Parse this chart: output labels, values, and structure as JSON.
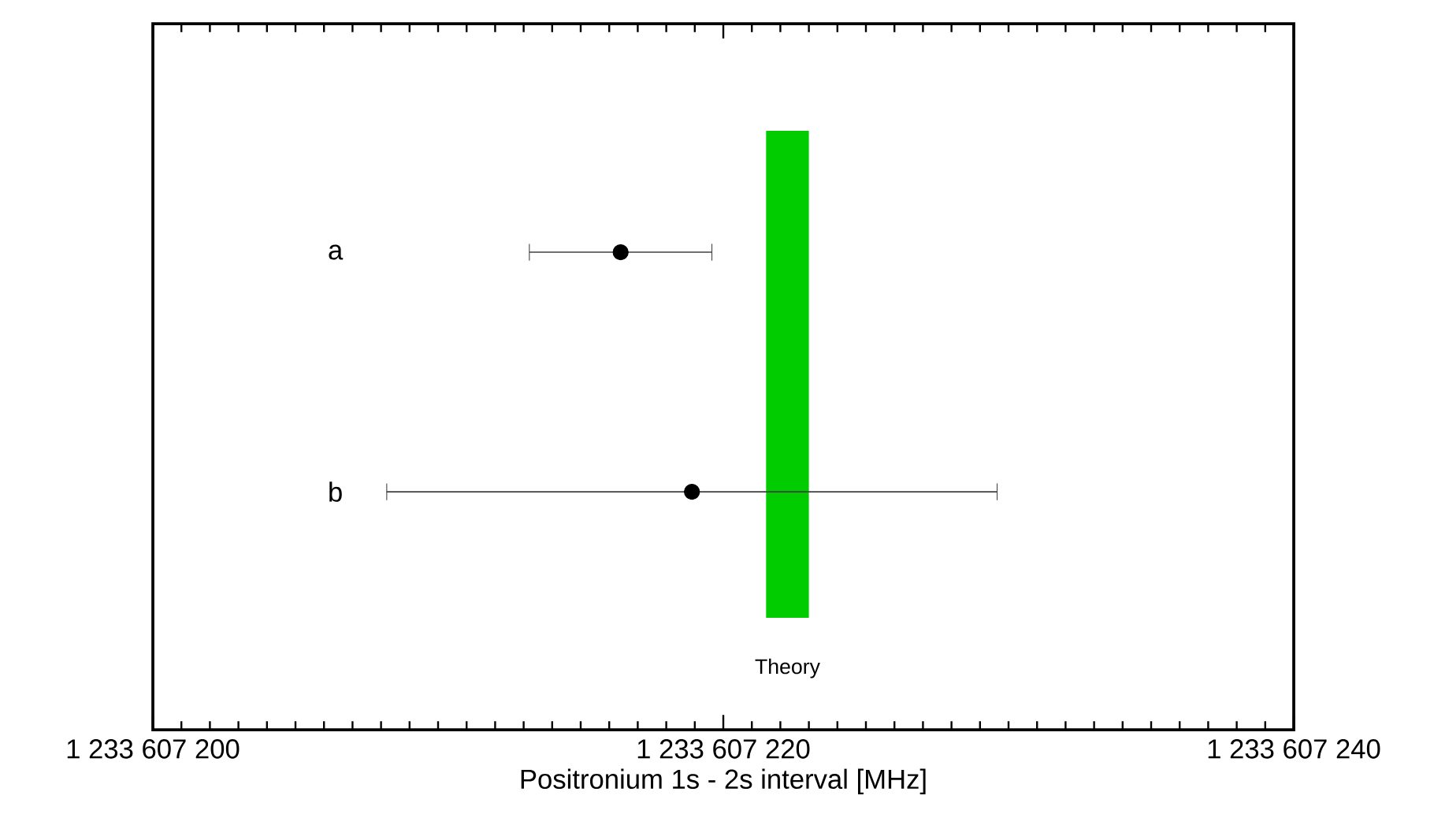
{
  "chart_data": {
    "type": "scatter",
    "orientation": "horizontal",
    "xlabel": "Positronium 1s - 2s interval [MHz]",
    "categories": [
      "a",
      "b"
    ],
    "values": [
      1233607216.4,
      1233607218.9
    ],
    "errors": [
      3.2,
      10.7
    ],
    "color": "#000000",
    "xlim": [
      1233607200,
      1233607240
    ],
    "xticks": [
      {
        "value": 1233607200,
        "label": "1 233 607 200"
      },
      {
        "value": 1233607220,
        "label": "1 233 607 220"
      },
      {
        "value": 1233607240,
        "label": "1 233 607 240"
      }
    ],
    "bands": [
      {
        "axis": "x",
        "from": 1233607221.5,
        "to": 1233607223.0,
        "label": "Theory",
        "color": "#00cc00"
      }
    ]
  }
}
